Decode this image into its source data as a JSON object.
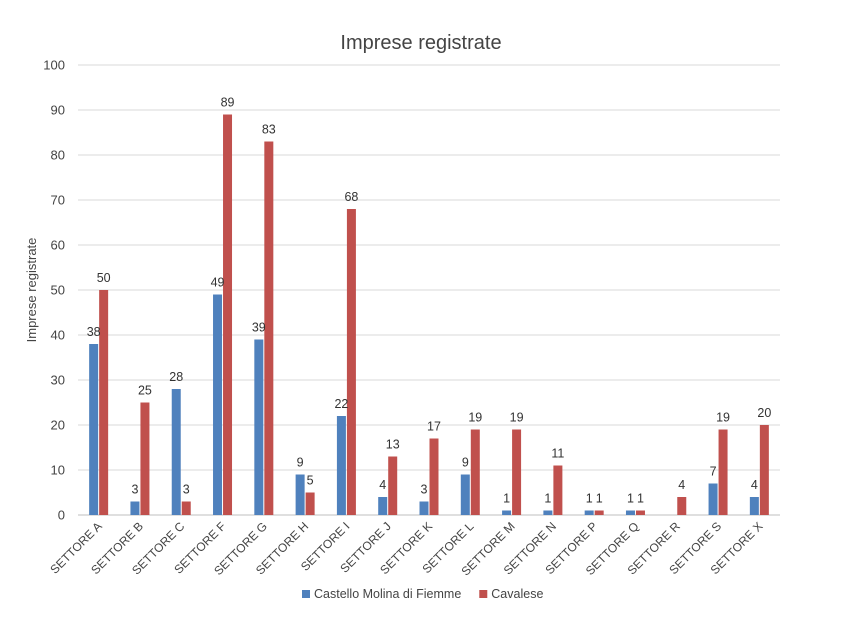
{
  "chart_data": {
    "type": "bar",
    "title": "Imprese registrate",
    "xlabel": "",
    "ylabel": "Imprese registrate",
    "ylim": [
      0,
      100
    ],
    "yticks": [
      0,
      10,
      20,
      30,
      40,
      50,
      60,
      70,
      80,
      90,
      100
    ],
    "grid": true,
    "legend_position": "bottom",
    "categories": [
      "SETTORE A",
      "SETTORE B",
      "SETTORE C",
      "SETTORE F",
      "SETTORE G",
      "SETTORE H",
      "SETTORE I",
      "SETTORE J",
      "SETTORE K",
      "SETTORE L",
      "SETTORE M",
      "SETTORE N",
      "SETTORE P",
      "SETTORE Q",
      "SETTORE R",
      "SETTORE S",
      "SETTORE X"
    ],
    "series": [
      {
        "name": "Castello Molina di Fiemme",
        "color": "#4f81bd",
        "values": [
          38,
          3,
          28,
          49,
          39,
          9,
          22,
          4,
          3,
          9,
          1,
          1,
          1,
          1,
          null,
          7,
          4
        ]
      },
      {
        "name": "Cavalese",
        "color": "#c0504d",
        "values": [
          50,
          25,
          3,
          89,
          83,
          5,
          68,
          13,
          17,
          19,
          19,
          11,
          1,
          1,
          4,
          19,
          20
        ]
      }
    ]
  }
}
